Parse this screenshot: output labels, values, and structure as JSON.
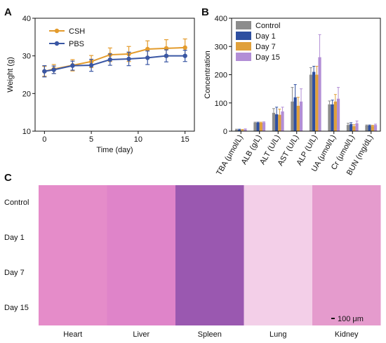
{
  "panels": {
    "a": "A",
    "b": "B",
    "c": "C"
  },
  "chart_data": [
    {
      "type": "line",
      "xlabel": "Time (day)",
      "ylabel": "Weight (g)",
      "xlim": [
        -1,
        16
      ],
      "ylim": [
        10,
        40
      ],
      "xticks": [
        0,
        5,
        10,
        15
      ],
      "yticks": [
        10,
        20,
        30,
        40
      ],
      "legend_position": "top-left",
      "series": [
        {
          "name": "CSH",
          "color": "#E39B2C",
          "x": [
            0,
            1,
            3,
            5,
            7,
            9,
            11,
            13,
            15
          ],
          "y": [
            25.9,
            26.5,
            27.5,
            28.5,
            30.3,
            30.5,
            31.8,
            32.0,
            32.2
          ],
          "err": [
            1.3,
            1.2,
            1.5,
            1.6,
            1.8,
            2.0,
            2.2,
            2.3,
            2.3
          ]
        },
        {
          "name": "PBS",
          "color": "#3A57A4",
          "x": [
            0,
            1,
            3,
            5,
            7,
            9,
            11,
            13,
            15
          ],
          "y": [
            25.9,
            26.3,
            27.4,
            27.5,
            29.0,
            29.2,
            29.5,
            30.0,
            30.0
          ],
          "err": [
            1.5,
            1.0,
            1.2,
            1.6,
            1.5,
            1.8,
            1.8,
            1.6,
            1.5
          ]
        }
      ]
    },
    {
      "type": "bar",
      "ylabel": "Concentration",
      "ylim": [
        0,
        400
      ],
      "yticks": [
        0,
        100,
        200,
        300,
        400
      ],
      "legend_position": "top-left",
      "categories": [
        "TBA (μmol/L)",
        "ALB (g/L)",
        "ALT (U/L)",
        "AST (U/L)",
        "ALP (U/L)",
        "UA (μmol/L)",
        "Cr (μmol/L)",
        "BUN (mg/dL)"
      ],
      "series": [
        {
          "name": "Control",
          "color": "#8C8C8C",
          "values": [
            5,
            30,
            65,
            105,
            200,
            95,
            22,
            20
          ],
          "err": [
            2,
            2,
            15,
            50,
            25,
            12,
            6,
            2
          ]
        },
        {
          "name": "Day 1",
          "color": "#2E4FA0",
          "values": [
            5,
            30,
            60,
            120,
            210,
            95,
            25,
            20
          ],
          "err": [
            2,
            2,
            25,
            45,
            20,
            15,
            5,
            2
          ]
        },
        {
          "name": "Day 7",
          "color": "#E0A03A",
          "values": [
            4,
            30,
            58,
            90,
            200,
            105,
            18,
            19
          ],
          "err": [
            2,
            2,
            20,
            30,
            30,
            25,
            5,
            2
          ]
        },
        {
          "name": "Day 15",
          "color": "#B28ED6",
          "values": [
            6,
            31,
            70,
            105,
            262,
            115,
            28,
            22
          ],
          "err": [
            2,
            2,
            15,
            45,
            80,
            40,
            8,
            3
          ]
        }
      ]
    }
  ],
  "histology": {
    "rows": [
      "Control",
      "Day 1",
      "Day 7",
      "Day 15"
    ],
    "columns": [
      {
        "label": "Heart",
        "color": "#e58cc9"
      },
      {
        "label": "Liver",
        "color": "#df84c9"
      },
      {
        "label": "Spleen",
        "color": "#9a58b0"
      },
      {
        "label": "Lung",
        "color": "#f3cfe8"
      },
      {
        "label": "Kidney",
        "color": "#e59bcd"
      }
    ],
    "scale_bar": "100 μm"
  }
}
